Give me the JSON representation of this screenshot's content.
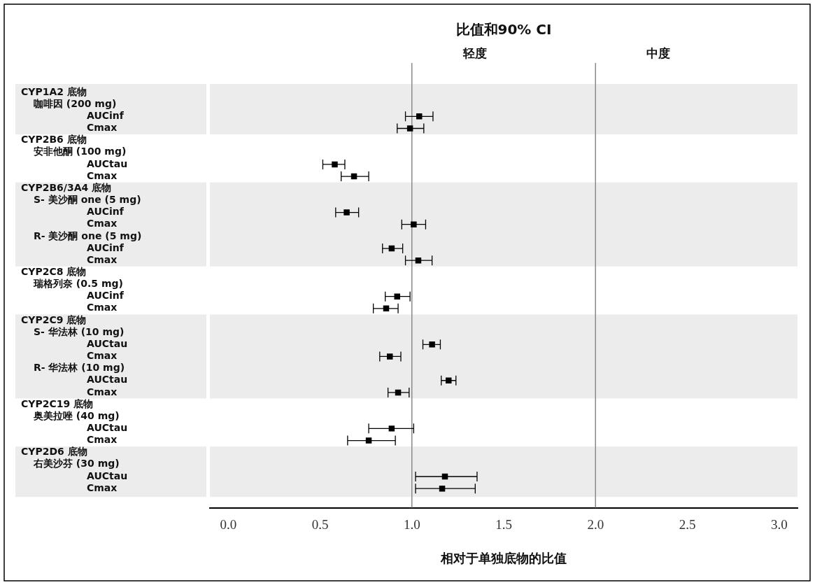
{
  "chart_data": {
    "type": "forest",
    "title": "比值和90% CI",
    "x_label": "相对于单独底物的比值",
    "xlim": [
      -0.1,
      3.1
    ],
    "xticks": [
      {
        "value": 0,
        "label": "0.0"
      },
      {
        "value": 0.5,
        "label": "0.5"
      },
      {
        "value": 1,
        "label": "1.0"
      },
      {
        "value": 1.5,
        "label": "1.5"
      },
      {
        "value": 2,
        "label": "2.0"
      },
      {
        "value": 2.5,
        "label": "2.5"
      },
      {
        "value": 3,
        "label": "3.0"
      }
    ],
    "grid": false,
    "marker": "square",
    "color": "#000000",
    "reference_lines": [
      {
        "value": 1,
        "label": "轻度"
      },
      {
        "value": 2,
        "label": "中度"
      }
    ],
    "groups": [
      {
        "name": "CYP1A2 底物",
        "drugs": [
          {
            "name": "咖啡因 (200 mg)",
            "measures": [
              {
                "name": "AUCinf",
                "value": 1.04,
                "ci": [
                  0.965,
                  1.115
                ]
              },
              {
                "name": "Cmax",
                "value": 0.99,
                "ci": [
                  0.92,
                  1.065
                ]
              }
            ]
          }
        ]
      },
      {
        "name": "CYP2B6 底物",
        "drugs": [
          {
            "name": "安非他酮 (100 mg)",
            "measures": [
              {
                "name": "AUCtau",
                "value": 0.58,
                "ci": [
                  0.515,
                  0.635
                ]
              },
              {
                "name": "Cmax",
                "value": 0.685,
                "ci": [
                  0.615,
                  0.765
                ]
              }
            ]
          }
        ]
      },
      {
        "name": "CYP2B6/3A4 底物",
        "drugs": [
          {
            "name": "S- 美沙酮 one (5 mg)",
            "measures": [
              {
                "name": "AUCinf",
                "value": 0.645,
                "ci": [
                  0.585,
                  0.71
                ]
              },
              {
                "name": "Cmax",
                "value": 1.01,
                "ci": [
                  0.945,
                  1.075
                ]
              }
            ]
          },
          {
            "name": "R- 美沙酮 one (5 mg)",
            "measures": [
              {
                "name": "AUCinf",
                "value": 0.89,
                "ci": [
                  0.84,
                  0.95
                ]
              },
              {
                "name": "Cmax",
                "value": 1.035,
                "ci": [
                  0.965,
                  1.11
                ]
              }
            ]
          }
        ]
      },
      {
        "name": "CYP2C8 底物",
        "drugs": [
          {
            "name": "瑞格列奈 (0.5 mg)",
            "measures": [
              {
                "name": "AUCinf",
                "value": 0.92,
                "ci": [
                  0.855,
                  0.99
                ]
              },
              {
                "name": "Cmax",
                "value": 0.86,
                "ci": [
                  0.79,
                  0.925
                ]
              }
            ]
          }
        ]
      },
      {
        "name": "CYP2C9 底物",
        "drugs": [
          {
            "name": "S- 华法林 (10 mg)",
            "measures": [
              {
                "name": "AUCtau",
                "value": 1.11,
                "ci": [
                  1.06,
                  1.155
                ]
              },
              {
                "name": "Cmax",
                "value": 0.88,
                "ci": [
                  0.825,
                  0.94
                ]
              }
            ]
          },
          {
            "name": "R- 华法林 (10 mg)",
            "measures": [
              {
                "name": "AUCtau",
                "value": 1.2,
                "ci": [
                  1.16,
                  1.24
                ]
              },
              {
                "name": "Cmax",
                "value": 0.925,
                "ci": [
                  0.87,
                  0.985
                ]
              }
            ]
          }
        ]
      },
      {
        "name": "CYP2C19 底物",
        "drugs": [
          {
            "name": "奥美拉唑 (40 mg)",
            "measures": [
              {
                "name": "AUCtau",
                "value": 0.89,
                "ci": [
                  0.765,
                  1.01
                ]
              },
              {
                "name": "Cmax",
                "value": 0.765,
                "ci": [
                  0.65,
                  0.91
                ]
              }
            ]
          }
        ]
      },
      {
        "name": "CYP2D6 底物",
        "drugs": [
          {
            "name": "右美沙芬 (30 mg)",
            "measures": [
              {
                "name": "AUCtau",
                "value": 1.18,
                "ci": [
                  1.02,
                  1.355
                ]
              },
              {
                "name": "Cmax",
                "value": 1.165,
                "ci": [
                  1.02,
                  1.345
                ]
              }
            ]
          }
        ]
      }
    ]
  }
}
